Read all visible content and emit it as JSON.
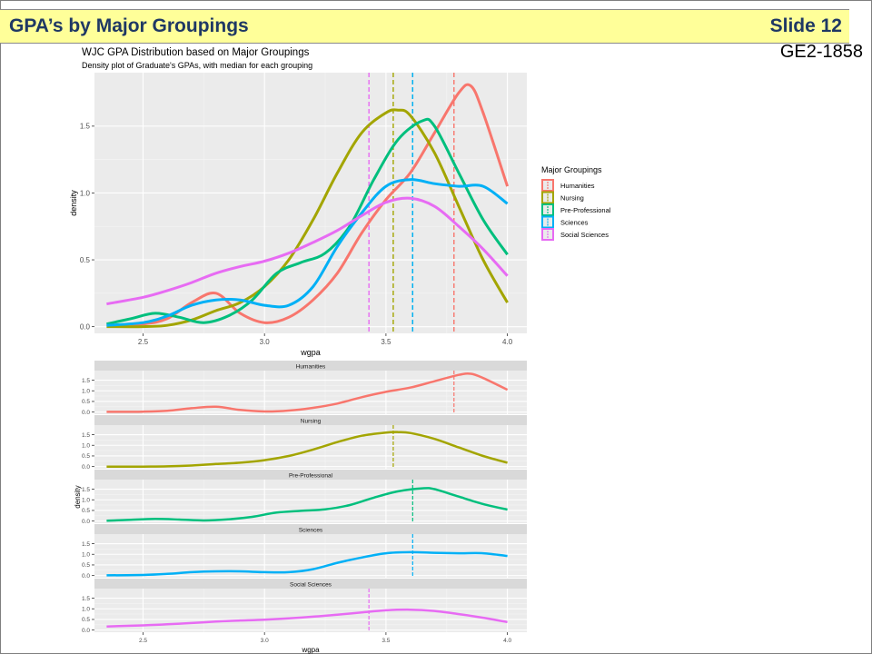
{
  "slide": {
    "title": "GPA’s by Major Groupings",
    "number": "Slide 12",
    "code": "GE2-1858"
  },
  "chart_data": [
    {
      "type": "line",
      "title": "WJC GPA Distribution based on Major Groupings",
      "subtitle": "Density plot of Graduate's GPAs, with median for each grouping",
      "xlabel": "wgpa",
      "ylabel": "density",
      "xlim": [
        2.3,
        4.08
      ],
      "ylim": [
        -0.05,
        1.9
      ],
      "xticks": [
        2.5,
        3.0,
        3.5,
        4.0
      ],
      "xtick_labels": [
        "2.5",
        "3.0",
        "3.5",
        "4.0"
      ],
      "yticks": [
        0,
        0.5,
        1.0,
        1.5
      ],
      "ytick_labels": [
        "0.0",
        "0.5",
        "1.0",
        "1.5"
      ],
      "grid": true,
      "legend_position": "right",
      "legend_title": "Major Groupings",
      "series": [
        {
          "name": "Humanities",
          "color": "#f8766d",
          "median": 3.78,
          "x": [
            2.35,
            2.5,
            2.6,
            2.7,
            2.8,
            2.9,
            3.0,
            3.1,
            3.2,
            3.3,
            3.4,
            3.5,
            3.6,
            3.7,
            3.8,
            3.85,
            3.9,
            4.0
          ],
          "y": [
            0.01,
            0.02,
            0.06,
            0.18,
            0.25,
            0.1,
            0.03,
            0.07,
            0.2,
            0.4,
            0.7,
            0.95,
            1.15,
            1.45,
            1.75,
            1.8,
            1.6,
            1.05
          ]
        },
        {
          "name": "Nursing",
          "color": "#a3a500",
          "median": 3.53,
          "x": [
            2.35,
            2.5,
            2.6,
            2.7,
            2.8,
            2.9,
            3.0,
            3.1,
            3.2,
            3.3,
            3.4,
            3.5,
            3.55,
            3.6,
            3.7,
            3.8,
            3.9,
            4.0
          ],
          "y": [
            0.0,
            0.0,
            0.01,
            0.05,
            0.12,
            0.18,
            0.3,
            0.5,
            0.8,
            1.15,
            1.45,
            1.6,
            1.62,
            1.58,
            1.3,
            0.9,
            0.5,
            0.18
          ]
        },
        {
          "name": "Pre-Professional",
          "color": "#00bf7d",
          "median": 3.61,
          "x": [
            2.35,
            2.45,
            2.55,
            2.65,
            2.75,
            2.85,
            2.95,
            3.05,
            3.15,
            3.25,
            3.35,
            3.45,
            3.55,
            3.65,
            3.7,
            3.8,
            3.9,
            4.0
          ],
          "y": [
            0.02,
            0.06,
            0.1,
            0.07,
            0.03,
            0.08,
            0.2,
            0.4,
            0.48,
            0.55,
            0.75,
            1.1,
            1.4,
            1.54,
            1.5,
            1.15,
            0.8,
            0.54
          ]
        },
        {
          "name": "Sciences",
          "color": "#00b0f6",
          "median": 3.61,
          "x": [
            2.35,
            2.5,
            2.6,
            2.7,
            2.8,
            2.9,
            3.0,
            3.1,
            3.2,
            3.3,
            3.4,
            3.5,
            3.6,
            3.7,
            3.8,
            3.9,
            4.0
          ],
          "y": [
            0.01,
            0.03,
            0.08,
            0.16,
            0.2,
            0.2,
            0.16,
            0.16,
            0.3,
            0.6,
            0.85,
            1.05,
            1.1,
            1.07,
            1.05,
            1.05,
            0.92
          ]
        },
        {
          "name": "Social Sciences",
          "color": "#e76bf3",
          "median": 3.43,
          "x": [
            2.35,
            2.5,
            2.6,
            2.7,
            2.8,
            2.9,
            3.0,
            3.1,
            3.2,
            3.3,
            3.4,
            3.5,
            3.6,
            3.7,
            3.8,
            3.9,
            4.0
          ],
          "y": [
            0.17,
            0.22,
            0.27,
            0.33,
            0.4,
            0.45,
            0.49,
            0.55,
            0.63,
            0.72,
            0.83,
            0.93,
            0.96,
            0.9,
            0.75,
            0.58,
            0.38
          ]
        }
      ]
    },
    {
      "type": "line",
      "layout": "facets",
      "xlabel": "wgpa",
      "ylabel": "density",
      "xlim": [
        2.3,
        4.08
      ],
      "ylim": [
        -0.1,
        1.95
      ],
      "xticks": [
        2.5,
        3.0,
        3.5,
        4.0
      ],
      "xtick_labels": [
        "2.5",
        "3.0",
        "3.5",
        "4.0"
      ],
      "yticks": [
        0,
        0.5,
        1.0,
        1.5
      ],
      "ytick_labels": [
        "0.0",
        "0.5",
        "1.0",
        "1.5"
      ],
      "grid": true,
      "facet_labels": [
        "Humanities",
        "Nursing",
        "Pre-Professional",
        "Sciences",
        "Social Sciences"
      ]
    }
  ]
}
